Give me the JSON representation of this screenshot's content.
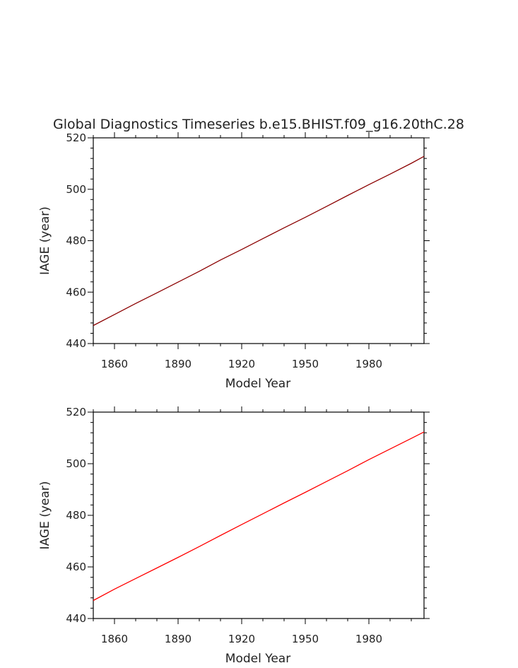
{
  "figure": {
    "title": "Global Diagnostics Timeseries b.e15.BHIST.f09_g16.20thC.28"
  },
  "chart_data": [
    {
      "type": "line",
      "title": "Global Diagnostics Timeseries b.e15.BHIST.f09_g16.20thC.28",
      "xlabel": "Model Year",
      "ylabel": "IAGE (year)",
      "xlim": [
        1850,
        2006
      ],
      "ylim": [
        440,
        520
      ],
      "x_ticks": [
        "1860",
        "1890",
        "1920",
        "1950",
        "1980"
      ],
      "y_ticks": [
        "440",
        "460",
        "480",
        "500",
        "520"
      ],
      "grid": false,
      "legend": "none",
      "line_color": "#8b0000",
      "series": [
        {
          "x": [
            1850,
            1860,
            1870,
            1880,
            1890,
            1900,
            1910,
            1920,
            1930,
            1940,
            1950,
            1960,
            1970,
            1980,
            1990,
            2000,
            2006
          ],
          "values": [
            447.0,
            451.3,
            455.6,
            459.7,
            463.9,
            468.1,
            472.5,
            476.6,
            480.8,
            485.0,
            489.1,
            493.3,
            497.6,
            501.8,
            505.9,
            510.1,
            512.8
          ]
        }
      ]
    },
    {
      "type": "line",
      "title": "",
      "xlabel": "Model Year",
      "ylabel": "IAGE (year)",
      "xlim": [
        1850,
        2006
      ],
      "ylim": [
        440,
        520
      ],
      "x_ticks": [
        "1860",
        "1890",
        "1920",
        "1950",
        "1980"
      ],
      "y_ticks": [
        "440",
        "460",
        "480",
        "500",
        "520"
      ],
      "grid": false,
      "legend": "none",
      "line_color": "#ff0000",
      "series": [
        {
          "x": [
            1850,
            1860,
            1870,
            1880,
            1890,
            1900,
            1910,
            1920,
            1930,
            1940,
            1950,
            1960,
            1970,
            1980,
            1990,
            2000,
            2006
          ],
          "values": [
            447.0,
            451.4,
            455.5,
            459.6,
            463.7,
            467.9,
            472.2,
            476.4,
            480.6,
            484.8,
            488.9,
            493.1,
            497.3,
            501.6,
            505.7,
            509.8,
            512.3
          ]
        }
      ]
    }
  ]
}
